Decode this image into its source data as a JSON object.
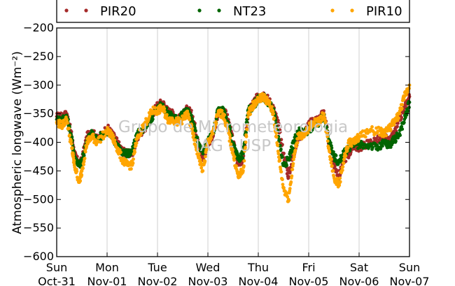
{
  "chart_data": {
    "type": "scatter",
    "ylabel": "Atmospheric longwave (Wm⁻²)",
    "ylim": [
      -600,
      -200
    ],
    "y_ticks": [
      "−200",
      "−250",
      "−300",
      "−350",
      "−400",
      "−450",
      "−500",
      "−550",
      "−600"
    ],
    "xlim": [
      0,
      7
    ],
    "x_tick_labels": [
      {
        "day": "Sun",
        "date": "Oct-31"
      },
      {
        "day": "Mon",
        "date": "Nov-01"
      },
      {
        "day": "Tue",
        "date": "Nov-02"
      },
      {
        "day": "Wed",
        "date": "Nov-03"
      },
      {
        "day": "Thu",
        "date": "Nov-04"
      },
      {
        "day": "Fri",
        "date": "Nov-05"
      },
      {
        "day": "Sat",
        "date": "Nov-06"
      },
      {
        "day": "Sun",
        "date": "Nov-07"
      }
    ],
    "grid": "vertical",
    "legend_position": "top",
    "watermark": [
      "Grupo de Micrometeorologia",
      "IAG - USP"
    ],
    "series": [
      {
        "name": "PIR20",
        "color": "#a52a2a",
        "x": [
          0.0,
          0.1,
          0.2,
          0.3,
          0.35,
          0.45,
          0.5,
          0.6,
          0.7,
          0.8,
          1.0,
          1.1,
          1.2,
          1.3,
          1.4,
          1.5,
          1.6,
          1.8,
          1.9,
          2.0,
          2.1,
          2.2,
          2.3,
          2.4,
          2.5,
          2.6,
          2.7,
          2.8,
          2.9,
          3.0,
          3.1,
          3.2,
          3.3,
          3.4,
          3.5,
          3.6,
          3.7,
          3.8,
          3.9,
          4.0,
          4.1,
          4.2,
          4.3,
          4.4,
          4.5,
          4.6,
          4.7,
          4.8,
          4.9,
          5.0,
          5.1,
          5.2,
          5.3,
          5.4,
          5.5,
          5.6,
          5.7,
          5.8,
          5.9,
          6.0,
          6.2,
          6.4,
          6.5,
          6.6,
          6.7,
          6.8,
          6.9,
          7.0
        ],
        "y": [
          -355,
          -355,
          -350,
          -390,
          -420,
          -440,
          -430,
          -390,
          -380,
          -395,
          -375,
          -385,
          -400,
          -415,
          -420,
          -420,
          -390,
          -370,
          -350,
          -335,
          -330,
          -345,
          -350,
          -360,
          -355,
          -340,
          -355,
          -395,
          -430,
          -400,
          -390,
          -350,
          -340,
          -360,
          -400,
          -440,
          -430,
          -350,
          -330,
          -320,
          -315,
          -325,
          -340,
          -370,
          -420,
          -460,
          -420,
          -390,
          -385,
          -370,
          -360,
          -360,
          -345,
          -400,
          -440,
          -460,
          -430,
          -420,
          -405,
          -410,
          -400,
          -395,
          -390,
          -400,
          -385,
          -360,
          -340,
          -320
        ]
      },
      {
        "name": "NT23",
        "color": "#006400",
        "x": [
          0.0,
          0.1,
          0.2,
          0.3,
          0.35,
          0.45,
          0.5,
          0.6,
          0.7,
          0.8,
          1.0,
          1.1,
          1.2,
          1.3,
          1.4,
          1.5,
          1.6,
          1.8,
          1.9,
          2.0,
          2.1,
          2.2,
          2.3,
          2.4,
          2.5,
          2.6,
          2.7,
          2.8,
          2.9,
          3.0,
          3.1,
          3.2,
          3.3,
          3.4,
          3.5,
          3.6,
          3.7,
          3.8,
          3.9,
          4.0,
          4.1,
          4.2,
          4.3,
          4.4,
          4.5,
          4.6,
          4.7,
          4.8,
          4.9,
          5.0,
          5.1,
          5.2,
          5.3,
          5.4,
          5.5,
          5.6,
          5.7,
          5.8,
          5.9,
          6.0,
          6.2,
          6.4,
          6.5,
          6.6,
          6.7,
          6.8,
          6.9,
          7.0
        ],
        "y": [
          -360,
          -360,
          -355,
          -395,
          -425,
          -440,
          -435,
          -395,
          -385,
          -395,
          -380,
          -390,
          -405,
          -420,
          -420,
          -415,
          -385,
          -370,
          -355,
          -340,
          -335,
          -350,
          -355,
          -360,
          -350,
          -345,
          -365,
          -400,
          -420,
          -395,
          -385,
          -345,
          -345,
          -365,
          -405,
          -430,
          -420,
          -345,
          -335,
          -325,
          -320,
          -330,
          -345,
          -390,
          -440,
          -430,
          -400,
          -380,
          -385,
          -380,
          -370,
          -365,
          -355,
          -395,
          -425,
          -435,
          -420,
          -410,
          -400,
          -405,
          -405,
          -410,
          -400,
          -405,
          -395,
          -385,
          -360,
          -330
        ]
      },
      {
        "name": "PIR10",
        "color": "#ffa500",
        "x": [
          0.0,
          0.1,
          0.2,
          0.3,
          0.35,
          0.45,
          0.5,
          0.6,
          0.7,
          0.8,
          1.0,
          1.1,
          1.2,
          1.3,
          1.4,
          1.5,
          1.6,
          1.8,
          1.9,
          2.0,
          2.1,
          2.2,
          2.3,
          2.4,
          2.5,
          2.6,
          2.7,
          2.8,
          2.9,
          3.0,
          3.1,
          3.2,
          3.3,
          3.4,
          3.5,
          3.6,
          3.7,
          3.8,
          3.9,
          4.0,
          4.1,
          4.2,
          4.3,
          4.4,
          4.5,
          4.6,
          4.7,
          4.8,
          4.9,
          5.0,
          5.1,
          5.2,
          5.3,
          5.4,
          5.5,
          5.6,
          5.7,
          5.8,
          5.9,
          6.0,
          6.2,
          6.4,
          6.5,
          6.6,
          6.7,
          6.8,
          6.9,
          7.0
        ],
        "y": [
          -365,
          -370,
          -360,
          -410,
          -440,
          -470,
          -450,
          -400,
          -390,
          -400,
          -380,
          -390,
          -410,
          -430,
          -440,
          -440,
          -390,
          -360,
          -345,
          -345,
          -340,
          -360,
          -360,
          -365,
          -360,
          -350,
          -385,
          -420,
          -450,
          -400,
          -385,
          -350,
          -350,
          -380,
          -420,
          -460,
          -450,
          -350,
          -335,
          -325,
          -320,
          -330,
          -350,
          -420,
          -480,
          -500,
          -430,
          -385,
          -390,
          -375,
          -365,
          -365,
          -350,
          -410,
          -460,
          -475,
          -430,
          -400,
          -400,
          -390,
          -380,
          -380,
          -385,
          -375,
          -365,
          -350,
          -320,
          -300
        ]
      }
    ]
  }
}
